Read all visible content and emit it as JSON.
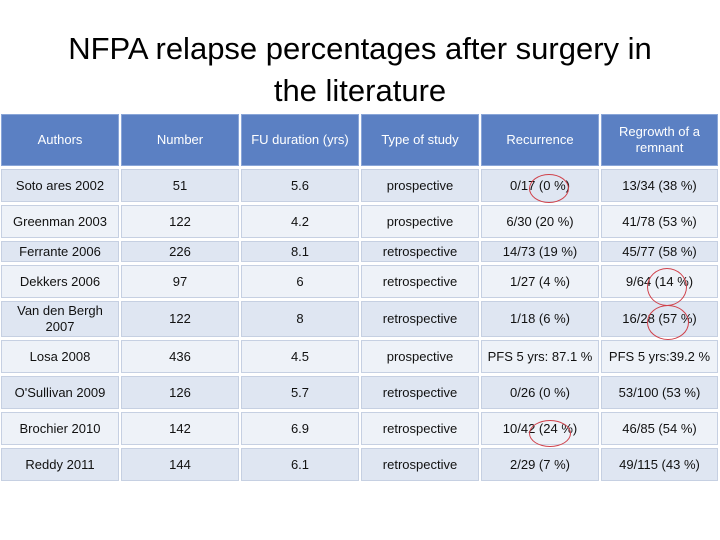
{
  "title": {
    "line1": "NFPA relapse percentages after surgery in",
    "line2": "the literature"
  },
  "table": {
    "headers": [
      "Authors",
      "Number",
      "FU duration (yrs)",
      "Type of study",
      "Recurrence",
      "Regrowth of a remnant"
    ],
    "rows": [
      [
        "Soto ares 2002",
        "51",
        "5.6",
        "prospective",
        "0/17 (0 %)",
        "13/34 (38 %)"
      ],
      [
        "Greenman 2003",
        "122",
        "4.2",
        "prospective",
        "6/30 (20 %)",
        "41/78 (53 %)"
      ],
      [
        "Ferrante 2006",
        "226",
        "8.1",
        "retrospective",
        "14/73 (19 %)",
        "45/77 (58 %)"
      ],
      [
        "Dekkers  2006",
        "97",
        "6",
        "retrospective",
        "1/27 (4 %)",
        "9/64 (14 %)"
      ],
      [
        "Van den Bergh 2007",
        "122",
        "8",
        "retrospective",
        "1/18 (6 %)",
        "16/28 (57 %)"
      ],
      [
        "Losa 2008",
        "436",
        "4.5",
        "prospective",
        "PFS 5 yrs: 87.1 %",
        "PFS 5 yrs:39.2 %"
      ],
      [
        "O'Sullivan 2009",
        "126",
        "5.7",
        "retrospective",
        "0/26 (0 %)",
        "53/100 (53 %)"
      ],
      [
        "Brochier 2010",
        "142",
        "6.9",
        "retrospective",
        "10/42 (24 %)",
        "46/85 (54 %)"
      ],
      [
        "Reddy 2011",
        "144",
        "6.1",
        "retrospective",
        "2/29 (7 %)",
        "49/115 (43 %)"
      ]
    ]
  },
  "colors": {
    "header_bg": "#5b80c3",
    "row_light": "#eef2f8",
    "row_dark": "#dfe6f2",
    "annotation_circle": "#d0414a"
  }
}
